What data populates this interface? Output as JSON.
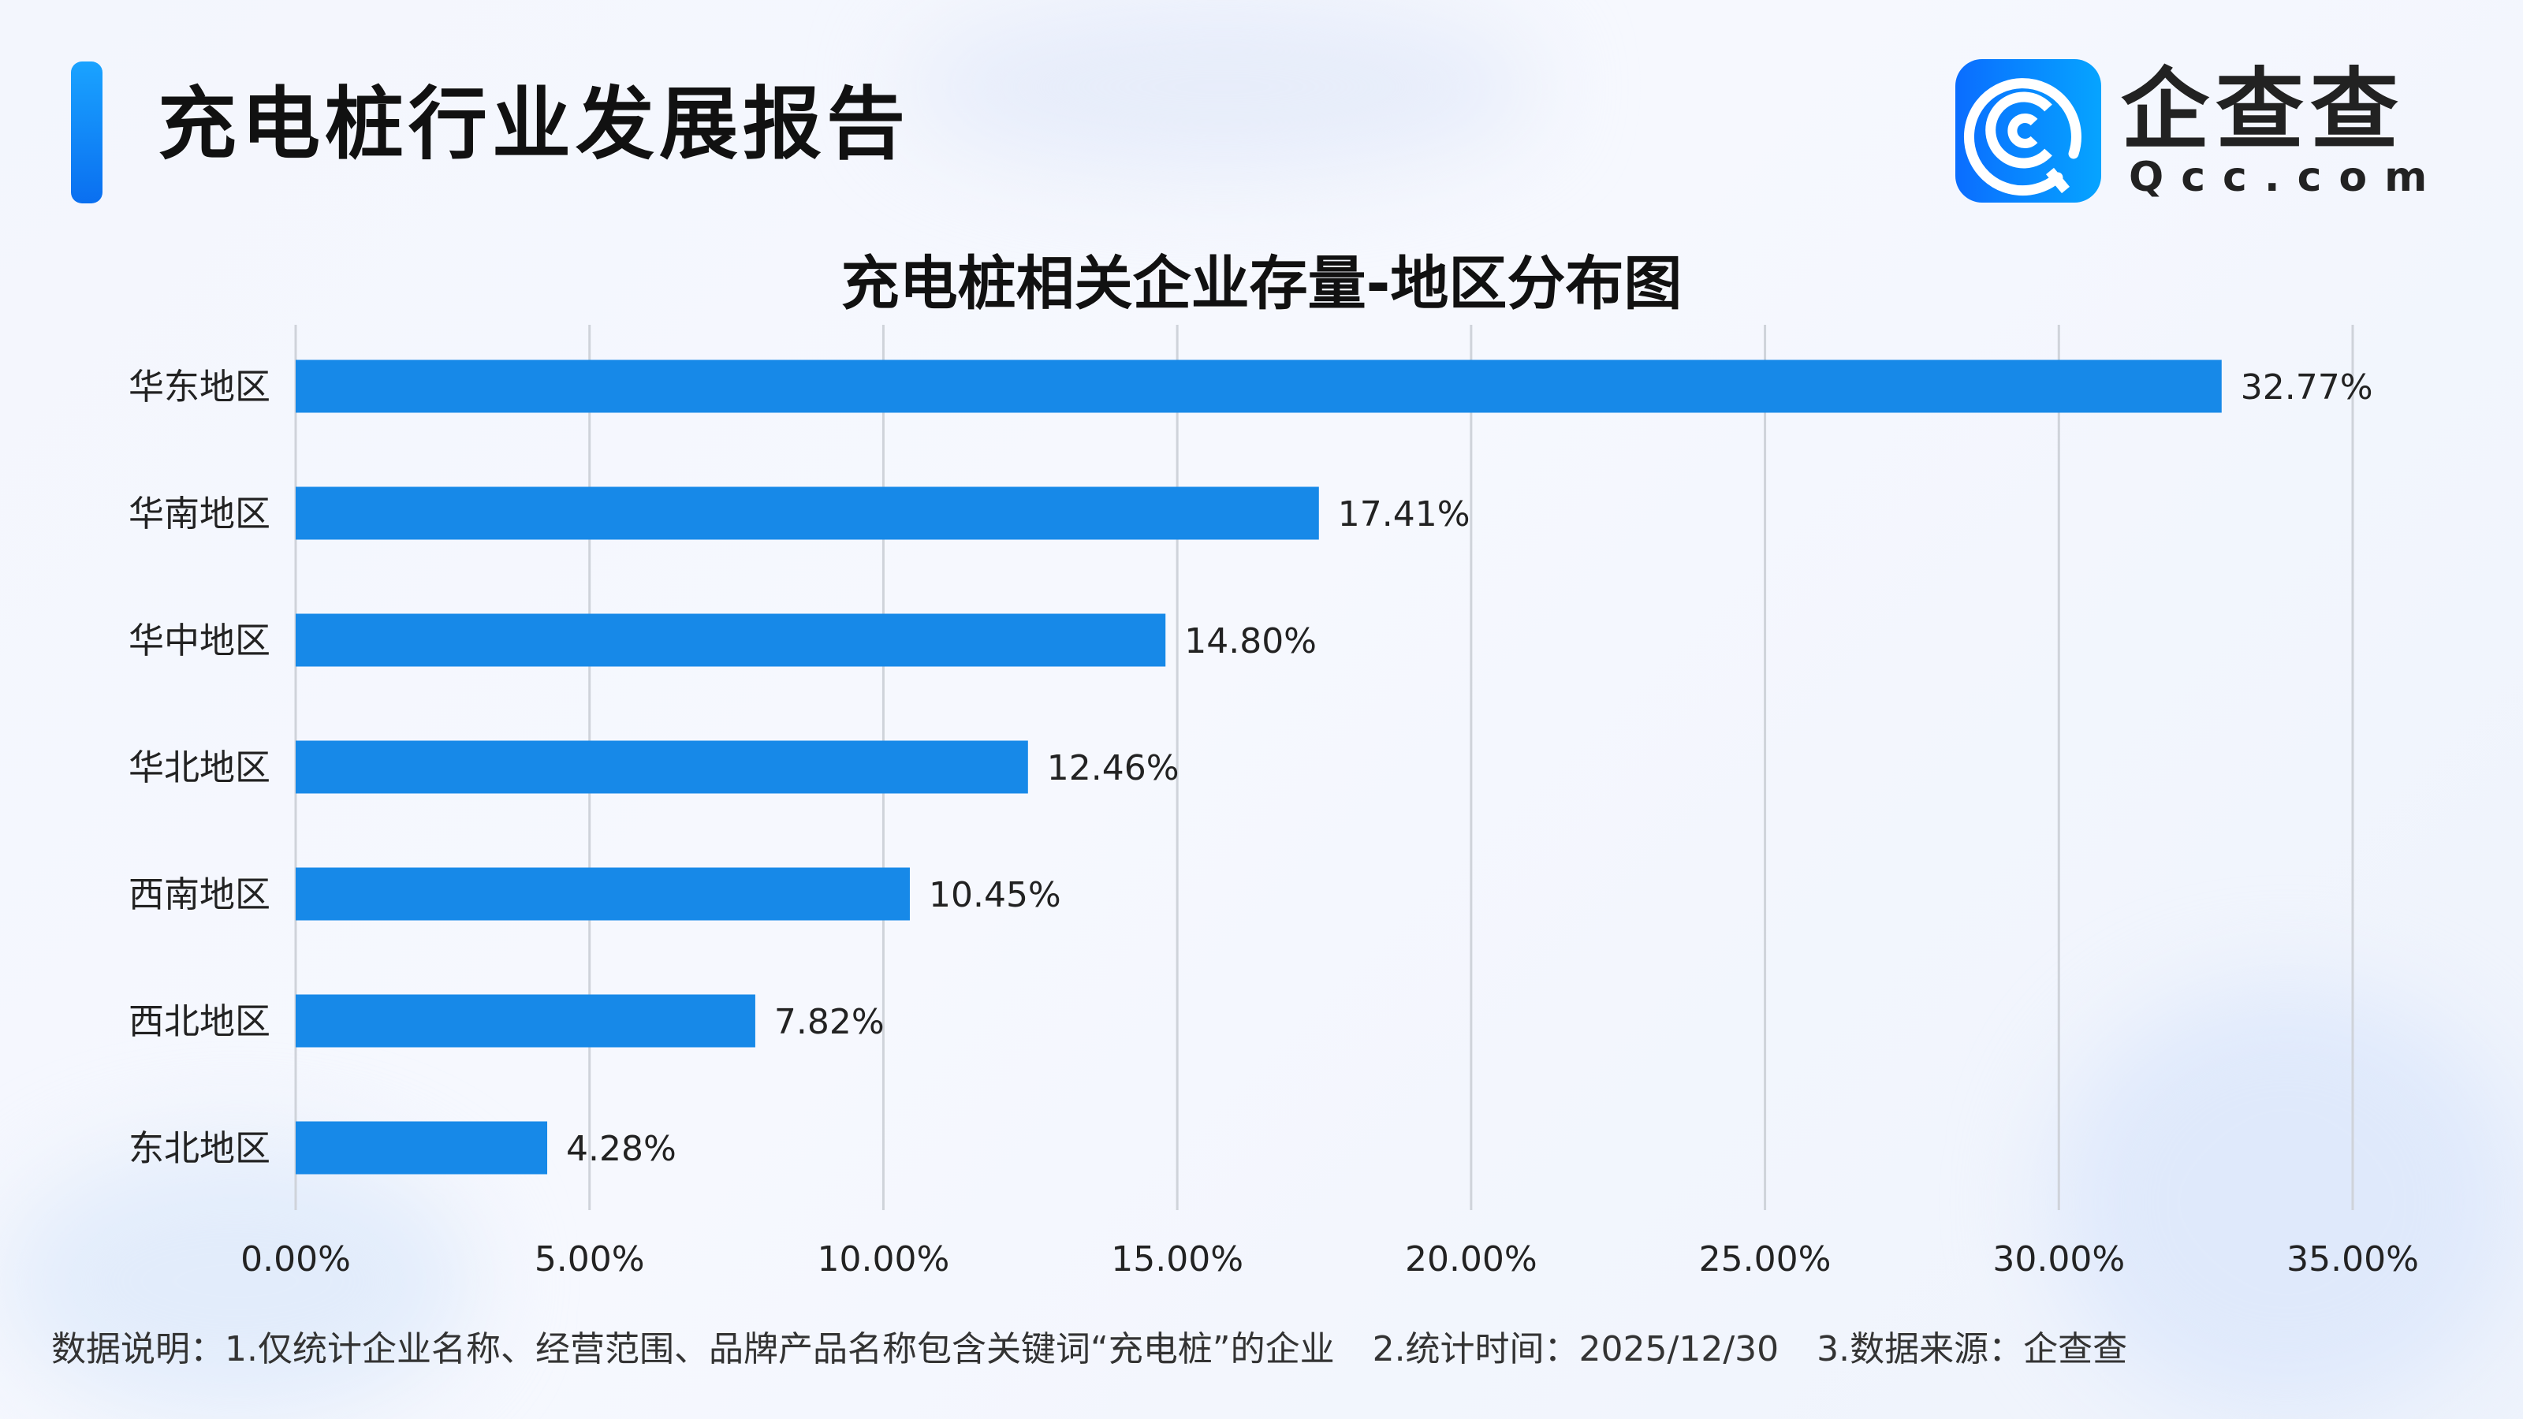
{
  "header": {
    "title": "充电桩行业发展报告",
    "logo_text": "企查查",
    "logo_sub": "Qcc.com"
  },
  "chart_data": {
    "type": "bar",
    "orientation": "horizontal",
    "title": "充电桩相关企业存量-地区分布图",
    "categories": [
      "华东地区",
      "华南地区",
      "华中地区",
      "华北地区",
      "西南地区",
      "西北地区",
      "东北地区"
    ],
    "values": [
      32.77,
      17.41,
      14.8,
      12.46,
      10.45,
      7.82,
      4.28
    ],
    "value_labels": [
      "32.77%",
      "17.41%",
      "14.80%",
      "12.46%",
      "10.45%",
      "7.82%",
      "4.28%"
    ],
    "x_ticks": [
      "0.00%",
      "5.00%",
      "10.00%",
      "15.00%",
      "20.00%",
      "25.00%",
      "30.00%",
      "35.00%"
    ],
    "xlim": [
      0,
      35
    ],
    "grid": "vertical",
    "bar_color": "#1789e8"
  },
  "footer": {
    "note1": "数据说明：1.仅统计企业名称、经营范围、品牌产品名称包含关键词“充电桩”的企业",
    "note2": "2.统计时间：2025/12/30",
    "note3": "3.数据来源：企查查"
  }
}
